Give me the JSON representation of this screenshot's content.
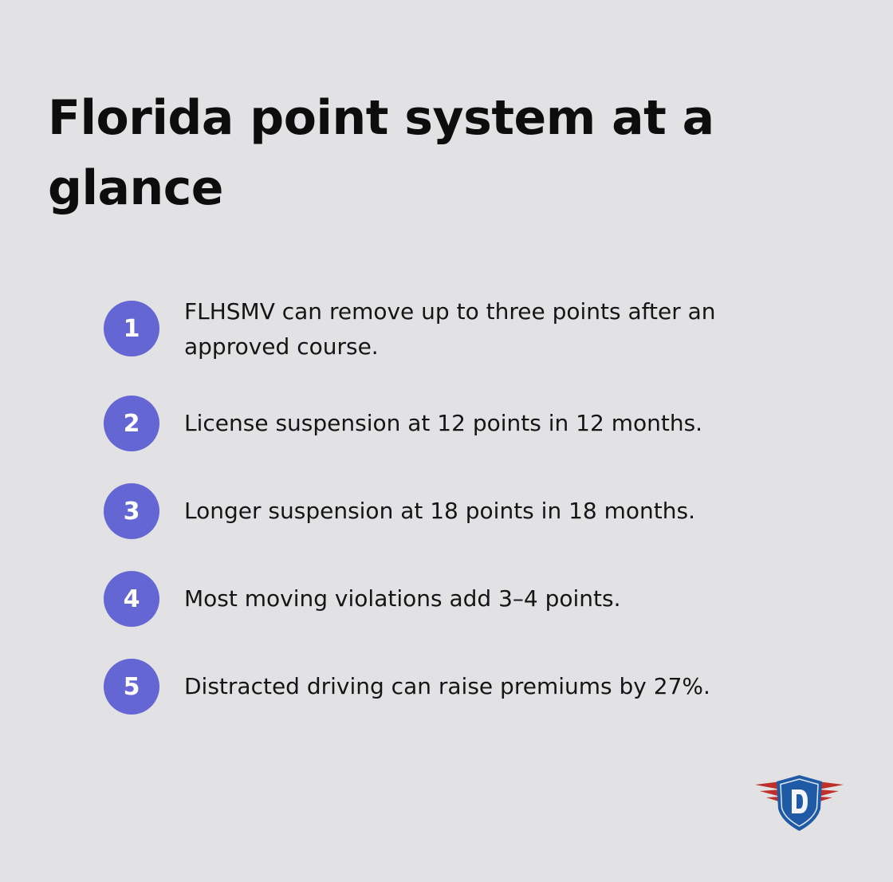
{
  "title": "Florida point system at a glance",
  "items": [
    {
      "number": "1",
      "text": "FLHSMV can remove up to three points after an approved course."
    },
    {
      "number": "2",
      "text": "License suspension at 12 points in 12 months."
    },
    {
      "number": "3",
      "text": "Longer suspension at 18 points in 18 months."
    },
    {
      "number": "4",
      "text": "Most moving violations add 3–4 points."
    },
    {
      "number": "5",
      "text": "Distracted driving can raise premiums by 27%."
    }
  ],
  "logo": {
    "letter": "D",
    "icon": "winged-shield-logo"
  },
  "colors": {
    "background": "#e2e2e4",
    "accent": "#6466d4",
    "logo_blue": "#1f5aa6",
    "logo_red": "#c0302b"
  }
}
